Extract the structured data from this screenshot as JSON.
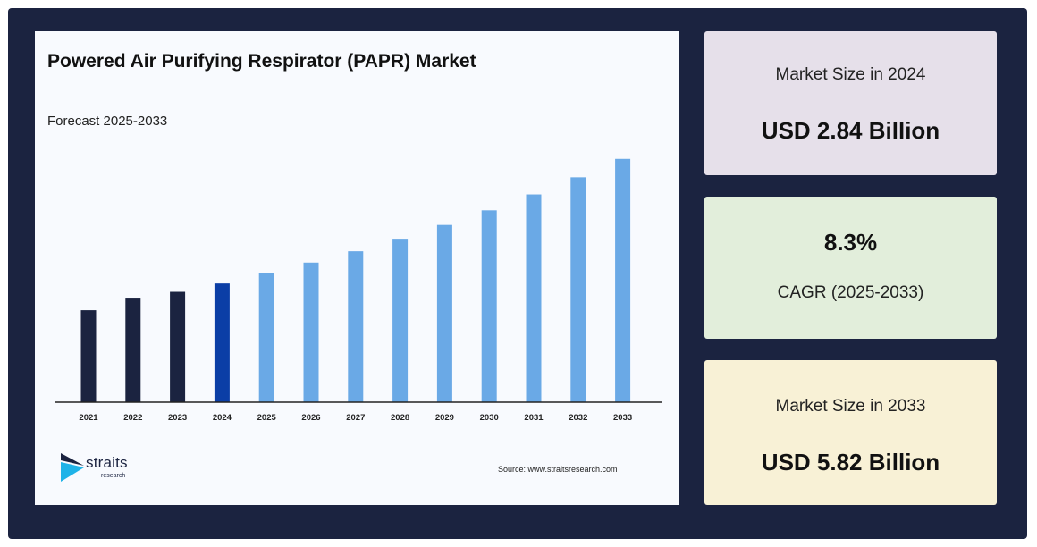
{
  "chart_data": {
    "type": "bar",
    "title": "Powered Air Purifying Respirator (PAPR) Market",
    "subtitle": "Forecast 2025-2033",
    "categories": [
      "2021",
      "2022",
      "2023",
      "2024",
      "2025",
      "2026",
      "2027",
      "2028",
      "2029",
      "2030",
      "2031",
      "2032",
      "2033"
    ],
    "values": [
      2.2,
      2.5,
      2.64,
      2.84,
      3.08,
      3.34,
      3.61,
      3.91,
      4.24,
      4.59,
      4.97,
      5.38,
      5.82
    ],
    "ylim": [
      0,
      6.2
    ],
    "grid": false,
    "bar_colors": [
      "#1b2340",
      "#1b2340",
      "#1b2340",
      "#0b3ea6",
      "#6aa9e6",
      "#6aa9e6",
      "#6aa9e6",
      "#6aa9e6",
      "#6aa9e6",
      "#6aa9e6",
      "#6aa9e6",
      "#6aa9e6",
      "#6aa9e6"
    ]
  },
  "source": "Source: www.straitsresearch.com",
  "logo": {
    "name": "straits",
    "sub": "research"
  },
  "cards": [
    {
      "label": "Market Size in 2024",
      "value": "USD 2.84 Billion",
      "bg": "#e6e0ea"
    },
    {
      "value": "8.3%",
      "label": "CAGR (2025-2033)",
      "bg": "#e2eedb"
    },
    {
      "label": "Market Size in 2033",
      "value": "USD 5.82 Billion",
      "bg": "#f8f1d6"
    }
  ],
  "colors": {
    "frame": "#1b2340",
    "panel": "#f8fafe",
    "axis": "#222222"
  }
}
